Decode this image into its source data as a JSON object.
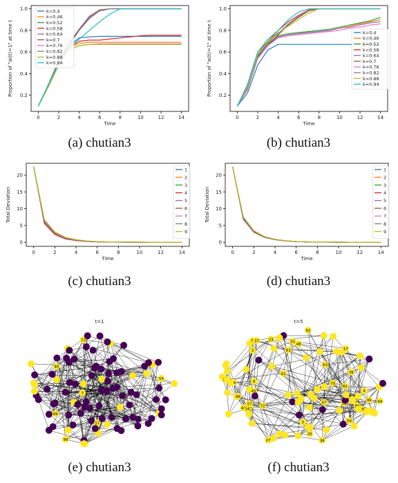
{
  "colors": [
    "#1f77b4",
    "#ff7f0e",
    "#2ca02c",
    "#d62728",
    "#9467bd",
    "#8c564b",
    "#e377c2",
    "#7f7f7f",
    "#bcbd22",
    "#17becf"
  ],
  "node_colors": {
    "on": "#fde725",
    "off": "#440154"
  },
  "captions": {
    "a": "(a) chutian3",
    "b": "(b) chutian3",
    "c": "(c) chutian3",
    "d": "(d) chutian3",
    "e": "(e) chutian3",
    "f": "(f) chutian3"
  },
  "chart_data": [
    {
      "id": "a",
      "type": "line",
      "xlabel": "Time",
      "ylabel": "Proportion of \"ai(t)=1\" at time t",
      "xlim": [
        -0.7,
        14.7
      ],
      "ylim": [
        0.05,
        1.03
      ],
      "xticks": [
        0,
        2,
        4,
        6,
        8,
        10,
        12,
        14
      ],
      "yticks": [
        0.2,
        0.4,
        0.6,
        0.8,
        1.0
      ],
      "ytick_labels": [
        "0.2",
        "0.4",
        "0.6",
        "0.8",
        "1.0"
      ],
      "x": [
        0,
        1,
        2,
        3,
        4,
        5,
        6,
        7,
        8,
        9,
        10,
        11,
        12,
        13,
        14
      ],
      "legend_position": "upper-left",
      "series": [
        {
          "name": "k=0.4",
          "values": [
            0.1,
            0.3,
            0.52,
            0.66,
            0.73,
            0.74,
            0.745,
            0.745,
            0.745,
            0.745,
            0.745,
            0.745,
            0.745,
            0.745,
            0.745
          ]
        },
        {
          "name": "k=0.46",
          "values": [
            0.1,
            0.3,
            0.5,
            0.64,
            0.68,
            0.69,
            0.69,
            0.69,
            0.69,
            0.69,
            0.69,
            0.69,
            0.69,
            0.69,
            0.69
          ]
        },
        {
          "name": "k=0.52",
          "values": [
            0.1,
            0.28,
            0.48,
            0.62,
            0.66,
            0.67,
            0.67,
            0.67,
            0.67,
            0.67,
            0.67,
            0.67,
            0.67,
            0.67,
            0.67
          ]
        },
        {
          "name": "k=0.58",
          "values": [
            0.1,
            0.3,
            0.5,
            0.64,
            0.7,
            0.71,
            0.71,
            0.72,
            0.73,
            0.74,
            0.75,
            0.755,
            0.755,
            0.755,
            0.755
          ]
        },
        {
          "name": "k=0.64",
          "values": [
            0.1,
            0.3,
            0.52,
            0.68,
            0.8,
            0.91,
            0.98,
            1.0,
            1.0,
            1.0,
            1.0,
            1.0,
            1.0,
            1.0,
            1.0
          ]
        },
        {
          "name": "k=0.7",
          "values": [
            0.1,
            0.3,
            0.52,
            0.68,
            0.81,
            0.93,
            0.99,
            1.0,
            1.0,
            1.0,
            1.0,
            1.0,
            1.0,
            1.0,
            1.0
          ]
        },
        {
          "name": "k=0.76",
          "values": [
            0.1,
            0.28,
            0.48,
            0.62,
            0.66,
            0.67,
            0.675,
            0.675,
            0.675,
            0.675,
            0.675,
            0.675,
            0.675,
            0.675,
            0.675
          ]
        },
        {
          "name": "k=0.82",
          "values": [
            0.1,
            0.3,
            0.5,
            0.66,
            0.8,
            0.92,
            0.98,
            1.0,
            1.0,
            1.0,
            1.0,
            1.0,
            1.0,
            1.0,
            1.0
          ]
        },
        {
          "name": "k=0.88",
          "values": [
            0.1,
            0.28,
            0.48,
            0.62,
            0.66,
            0.67,
            0.67,
            0.67,
            0.67,
            0.67,
            0.67,
            0.67,
            0.67,
            0.67,
            0.67
          ]
        },
        {
          "name": "k=0.94",
          "values": [
            0.1,
            0.3,
            0.5,
            0.64,
            0.72,
            0.8,
            0.88,
            0.95,
            1.0,
            1.0,
            1.0,
            1.0,
            1.0,
            1.0,
            1.0
          ]
        }
      ]
    },
    {
      "id": "b",
      "type": "line",
      "xlabel": "Time",
      "ylabel": "Proportion of \"ai(t)=1\" at time t",
      "xlim": [
        -0.7,
        14.7
      ],
      "ylim": [
        0.05,
        1.03
      ],
      "xticks": [
        0,
        2,
        4,
        6,
        8,
        10,
        12,
        14
      ],
      "yticks": [
        0.2,
        0.4,
        0.6,
        0.8,
        1.0
      ],
      "ytick_labels": [
        "0.2",
        "0.4",
        "0.6",
        "0.8",
        "1.0"
      ],
      "x": [
        0,
        1,
        2,
        3,
        4,
        5,
        6,
        7,
        8,
        9,
        10,
        11,
        12,
        13,
        14
      ],
      "legend_position": "right",
      "series": [
        {
          "name": "k=0.4",
          "values": [
            0.1,
            0.22,
            0.48,
            0.62,
            0.67,
            0.67,
            0.67,
            0.67,
            0.67,
            0.67,
            0.67,
            0.67,
            0.67,
            0.67,
            0.67
          ]
        },
        {
          "name": "k=0.46",
          "values": [
            0.1,
            0.26,
            0.55,
            0.66,
            0.74,
            0.76,
            0.77,
            0.78,
            0.79,
            0.8,
            0.82,
            0.84,
            0.86,
            0.88,
            0.9
          ]
        },
        {
          "name": "k=0.52",
          "values": [
            0.1,
            0.27,
            0.57,
            0.68,
            0.75,
            0.77,
            0.78,
            0.79,
            0.8,
            0.81,
            0.83,
            0.85,
            0.87,
            0.89,
            0.92
          ]
        },
        {
          "name": "k=0.58",
          "values": [
            0.1,
            0.3,
            0.6,
            0.7,
            0.8,
            0.88,
            0.94,
            0.99,
            1.0,
            1.0,
            1.0,
            1.0,
            1.0,
            1.0,
            1.0
          ]
        },
        {
          "name": "k=0.64",
          "values": [
            0.1,
            0.26,
            0.56,
            0.67,
            0.74,
            0.76,
            0.77,
            0.78,
            0.79,
            0.8,
            0.82,
            0.83,
            0.85,
            0.87,
            0.88
          ]
        },
        {
          "name": "k=0.7",
          "values": [
            0.1,
            0.26,
            0.55,
            0.66,
            0.76,
            0.85,
            0.92,
            0.98,
            1.0,
            1.0,
            1.0,
            1.0,
            1.0,
            1.0,
            1.0
          ]
        },
        {
          "name": "k=0.76",
          "values": [
            0.1,
            0.25,
            0.54,
            0.66,
            0.73,
            0.75,
            0.76,
            0.77,
            0.78,
            0.79,
            0.8,
            0.82,
            0.83,
            0.85,
            0.86
          ]
        },
        {
          "name": "k=0.82",
          "values": [
            0.1,
            0.27,
            0.56,
            0.69,
            0.77,
            0.86,
            0.93,
            0.98,
            1.0,
            1.0,
            1.0,
            1.0,
            1.0,
            1.0,
            1.0
          ]
        },
        {
          "name": "k=0.88",
          "values": [
            0.1,
            0.28,
            0.58,
            0.7,
            0.78,
            0.84,
            0.9,
            0.96,
            1.0,
            1.0,
            1.0,
            1.0,
            1.0,
            1.0,
            1.0
          ]
        },
        {
          "name": "k=0.94",
          "values": [
            0.1,
            0.3,
            0.6,
            0.72,
            0.8,
            0.9,
            0.97,
            1.0,
            1.0,
            1.0,
            1.0,
            1.0,
            1.0,
            1.0,
            1.0
          ]
        }
      ]
    },
    {
      "id": "c",
      "type": "line",
      "xlabel": "Time",
      "ylabel": "Total Deviation",
      "xlim": [
        -0.7,
        14.7
      ],
      "ylim": [
        -1.2,
        23.5
      ],
      "xticks": [
        0,
        2,
        4,
        6,
        8,
        10,
        12,
        14
      ],
      "yticks": [
        0,
        5,
        10,
        15,
        20
      ],
      "ytick_labels": [
        "0",
        "5",
        "10",
        "15",
        "20"
      ],
      "x": [
        0,
        1,
        2,
        3,
        4,
        5,
        6,
        7,
        8,
        9,
        10,
        11,
        12,
        13,
        14
      ],
      "legend_position": "right",
      "series": [
        {
          "name": "1",
          "values": [
            22.5,
            6.0,
            2.6,
            1.2,
            0.6,
            0.3,
            0.15,
            0.08,
            0.05,
            0.03,
            0.02,
            0.01,
            0.01,
            0.01,
            0.01
          ]
        },
        {
          "name": "2",
          "values": [
            22.5,
            6.3,
            2.8,
            1.3,
            0.7,
            0.35,
            0.18,
            0.1,
            0.06,
            0.04,
            0.03,
            0.02,
            0.02,
            0.02,
            0.02
          ]
        },
        {
          "name": "3",
          "values": [
            22.5,
            6.6,
            3.0,
            1.4,
            0.75,
            0.38,
            0.2,
            0.12,
            0.07,
            0.05,
            0.03,
            0.02,
            0.02,
            0.02,
            0.02
          ]
        },
        {
          "name": "4",
          "values": [
            22.5,
            5.6,
            2.3,
            1.0,
            0.5,
            0.25,
            0.12,
            0.07,
            0.04,
            0.03,
            0.02,
            0.01,
            0.01,
            0.01,
            0.01
          ]
        },
        {
          "name": "5",
          "values": [
            22.5,
            6.4,
            2.9,
            1.35,
            0.72,
            0.36,
            0.19,
            0.11,
            0.06,
            0.04,
            0.03,
            0.02,
            0.02,
            0.02,
            0.02
          ]
        },
        {
          "name": "6",
          "values": [
            22.5,
            6.2,
            2.7,
            1.25,
            0.65,
            0.32,
            0.16,
            0.09,
            0.05,
            0.03,
            0.02,
            0.01,
            0.01,
            0.01,
            0.01
          ]
        },
        {
          "name": "7",
          "values": [
            22.5,
            6.5,
            3.0,
            1.4,
            0.74,
            0.37,
            0.2,
            0.11,
            0.07,
            0.04,
            0.03,
            0.02,
            0.02,
            0.02,
            0.02
          ]
        },
        {
          "name": "8",
          "values": [
            22.5,
            6.1,
            2.7,
            1.2,
            0.62,
            0.31,
            0.16,
            0.09,
            0.05,
            0.03,
            0.02,
            0.01,
            0.01,
            0.01,
            0.01
          ]
        },
        {
          "name": "9",
          "values": [
            22.5,
            6.8,
            3.1,
            1.5,
            0.8,
            0.4,
            0.22,
            0.12,
            0.07,
            0.05,
            0.03,
            0.02,
            0.02,
            0.02,
            0.02
          ]
        }
      ]
    },
    {
      "id": "d",
      "type": "line",
      "xlabel": "Time",
      "ylabel": "Total Deviation",
      "xlim": [
        -0.7,
        14.7
      ],
      "ylim": [
        -1.2,
        23.5
      ],
      "xticks": [
        0,
        2,
        4,
        6,
        8,
        10,
        12,
        14
      ],
      "yticks": [
        0,
        5,
        10,
        15,
        20
      ],
      "ytick_labels": [
        "0",
        "5",
        "10",
        "15",
        "20"
      ],
      "x": [
        0,
        1,
        2,
        3,
        4,
        5,
        6,
        7,
        8,
        9,
        10,
        11,
        12,
        13,
        14
      ],
      "legend_position": "right",
      "series": [
        {
          "name": "1",
          "values": [
            22.5,
            6.8,
            3.1,
            1.5,
            0.8,
            0.4,
            0.22,
            0.12,
            0.07,
            0.05,
            0.03,
            0.02,
            0.02,
            0.02,
            0.02
          ]
        },
        {
          "name": "2",
          "values": [
            22.5,
            7.0,
            3.2,
            1.6,
            0.85,
            0.43,
            0.23,
            0.13,
            0.08,
            0.05,
            0.03,
            0.02,
            0.02,
            0.02,
            0.02
          ]
        },
        {
          "name": "3",
          "values": [
            22.5,
            7.2,
            3.3,
            1.6,
            0.88,
            0.45,
            0.24,
            0.14,
            0.08,
            0.05,
            0.03,
            0.02,
            0.02,
            0.02,
            0.02
          ]
        },
        {
          "name": "4",
          "values": [
            22.5,
            6.9,
            3.0,
            1.5,
            0.8,
            0.4,
            0.21,
            0.12,
            0.07,
            0.04,
            0.03,
            0.02,
            0.02,
            0.02,
            0.02
          ]
        },
        {
          "name": "5",
          "values": [
            22.5,
            7.4,
            3.4,
            1.7,
            0.9,
            0.46,
            0.25,
            0.14,
            0.09,
            0.05,
            0.03,
            0.02,
            0.02,
            0.02,
            0.02
          ]
        },
        {
          "name": "6",
          "values": [
            22.5,
            7.0,
            3.1,
            1.5,
            0.82,
            0.42,
            0.22,
            0.12,
            0.07,
            0.05,
            0.03,
            0.02,
            0.02,
            0.02,
            0.02
          ]
        },
        {
          "name": "7",
          "values": [
            22.5,
            7.3,
            3.3,
            1.6,
            0.87,
            0.44,
            0.24,
            0.13,
            0.08,
            0.05,
            0.03,
            0.02,
            0.02,
            0.02,
            0.02
          ]
        },
        {
          "name": "8",
          "values": [
            22.5,
            7.1,
            3.2,
            1.6,
            0.84,
            0.43,
            0.23,
            0.13,
            0.08,
            0.05,
            0.03,
            0.02,
            0.02,
            0.02,
            0.02
          ]
        },
        {
          "name": "9",
          "values": [
            22.5,
            7.6,
            3.5,
            1.7,
            0.92,
            0.47,
            0.25,
            0.14,
            0.09,
            0.06,
            0.04,
            0.02,
            0.02,
            0.02,
            0.02
          ]
        }
      ]
    }
  ],
  "network_e": {
    "title": "t=1",
    "labeled_nodes": [
      "30",
      "73",
      "4",
      "50",
      "99",
      "14",
      "79",
      "86",
      "2",
      "22",
      "18",
      "62",
      "81",
      "7",
      "51",
      "24",
      "97",
      "82",
      "63",
      "93",
      "57",
      "99",
      "42",
      "60",
      "55",
      "48",
      "26"
    ]
  },
  "network_f": {
    "title": "t=5",
    "labeled_nodes": [
      "3",
      "91",
      "38",
      "30",
      "25",
      "51",
      "61",
      "13",
      "8",
      "52",
      "80",
      "70",
      "12",
      "97",
      "69",
      "99",
      "78",
      "4",
      "40",
      "76",
      "72",
      "82",
      "47",
      "94",
      "64",
      "59",
      "55",
      "21",
      "35",
      "3",
      "57",
      "96",
      "92",
      "37",
      "54",
      "48",
      "45",
      "46",
      "23",
      "50",
      "42",
      "27",
      "17",
      "63"
    ]
  }
}
